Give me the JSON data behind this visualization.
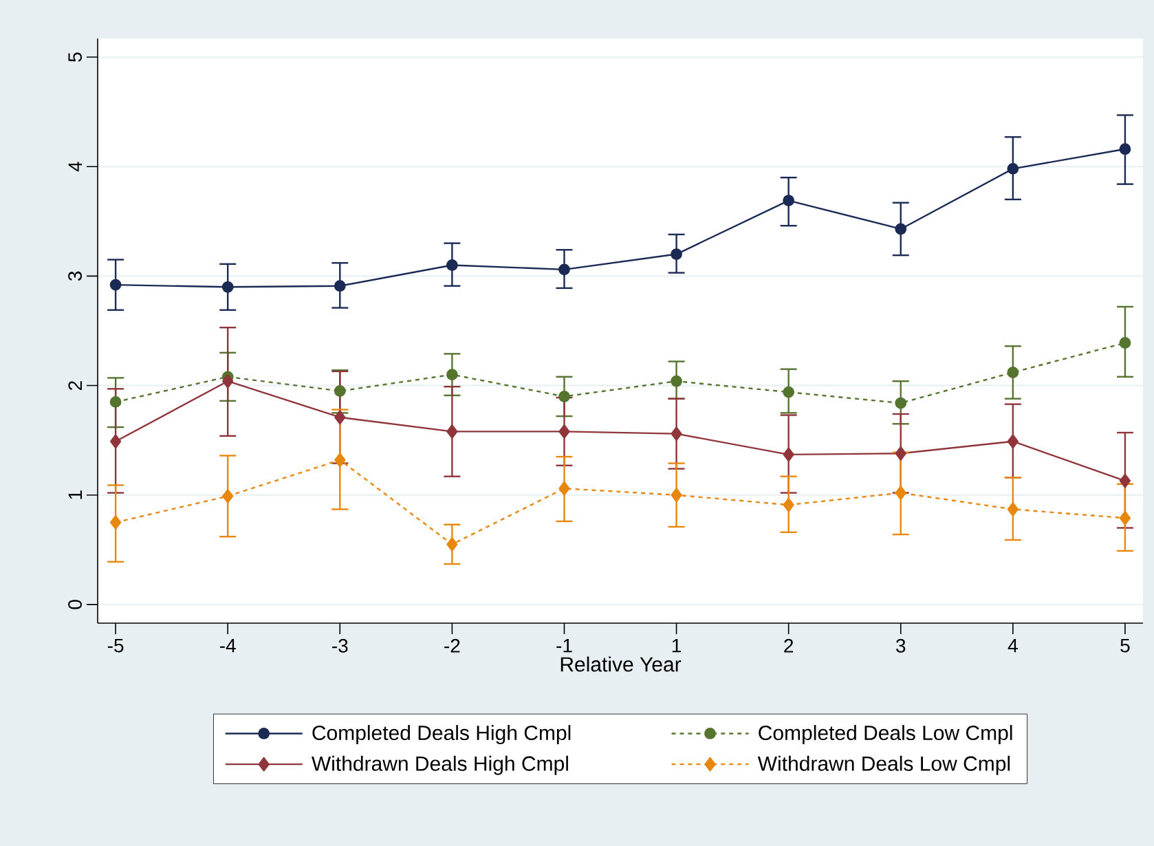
{
  "chart_data": {
    "type": "line",
    "xlabel": "Relative Year",
    "categories": [
      "-5",
      "-4",
      "-3",
      "-2",
      "-1",
      "1",
      "2",
      "3",
      "4",
      "5"
    ],
    "ylim": [
      -0.17,
      5.17
    ],
    "yticks": [
      0,
      1,
      2,
      3,
      4,
      5
    ],
    "grid": "y",
    "legend": "bottom",
    "series": [
      {
        "name": "Completed Deals High Cmpl",
        "color": "#1a2a55",
        "marker": "circle",
        "line_style": "solid",
        "values": [
          2.92,
          2.9,
          2.91,
          3.1,
          3.06,
          3.2,
          3.69,
          3.43,
          3.98,
          4.16
        ],
        "errors": [
          [
            2.69,
            3.15
          ],
          [
            2.69,
            3.11
          ],
          [
            2.71,
            3.12
          ],
          [
            2.91,
            3.3
          ],
          [
            2.89,
            3.24
          ],
          [
            3.03,
            3.38
          ],
          [
            3.46,
            3.9
          ],
          [
            3.19,
            3.67
          ],
          [
            3.7,
            4.27
          ],
          [
            3.84,
            4.47
          ]
        ]
      },
      {
        "name": "Completed Deals Low Cmpl",
        "color": "#55752f",
        "marker": "circle",
        "line_style": "dashed",
        "values": [
          1.85,
          2.08,
          1.95,
          2.1,
          1.9,
          2.04,
          1.94,
          1.84,
          2.12,
          2.39
        ],
        "errors": [
          [
            1.62,
            2.07
          ],
          [
            1.86,
            2.3
          ],
          [
            1.75,
            2.14
          ],
          [
            1.91,
            2.29
          ],
          [
            1.72,
            2.08
          ],
          [
            1.88,
            2.22
          ],
          [
            1.75,
            2.15
          ],
          [
            1.65,
            2.04
          ],
          [
            1.88,
            2.36
          ],
          [
            2.08,
            2.72
          ]
        ]
      },
      {
        "name": "Withdrawn Deals High Cmpl",
        "color": "#90353b",
        "marker": "diamond",
        "line_style": "solid",
        "values": [
          1.49,
          2.04,
          1.71,
          1.58,
          1.58,
          1.56,
          1.37,
          1.38,
          1.49,
          1.13
        ],
        "errors": [
          [
            1.02,
            1.97
          ],
          [
            1.54,
            2.53
          ],
          [
            1.29,
            2.13
          ],
          [
            1.17,
            1.99
          ],
          [
            1.27,
            1.89
          ],
          [
            1.24,
            1.88
          ],
          [
            1.02,
            1.73
          ],
          [
            1.02,
            1.74
          ],
          [
            1.16,
            1.83
          ],
          [
            0.7,
            1.57
          ]
        ]
      },
      {
        "name": "Withdrawn Deals Low Cmpl",
        "color": "#e8870e",
        "marker": "diamond",
        "line_style": "dashed",
        "values": [
          0.75,
          0.99,
          1.32,
          0.55,
          1.06,
          1.0,
          0.91,
          1.02,
          0.87,
          0.79
        ],
        "errors": [
          [
            0.39,
            1.09
          ],
          [
            0.62,
            1.36
          ],
          [
            0.87,
            1.78
          ],
          [
            0.37,
            0.73
          ],
          [
            0.76,
            1.35
          ],
          [
            0.71,
            1.29
          ],
          [
            0.66,
            1.17
          ],
          [
            0.64,
            1.39
          ],
          [
            0.59,
            1.16
          ],
          [
            0.49,
            1.1
          ]
        ]
      }
    ]
  }
}
